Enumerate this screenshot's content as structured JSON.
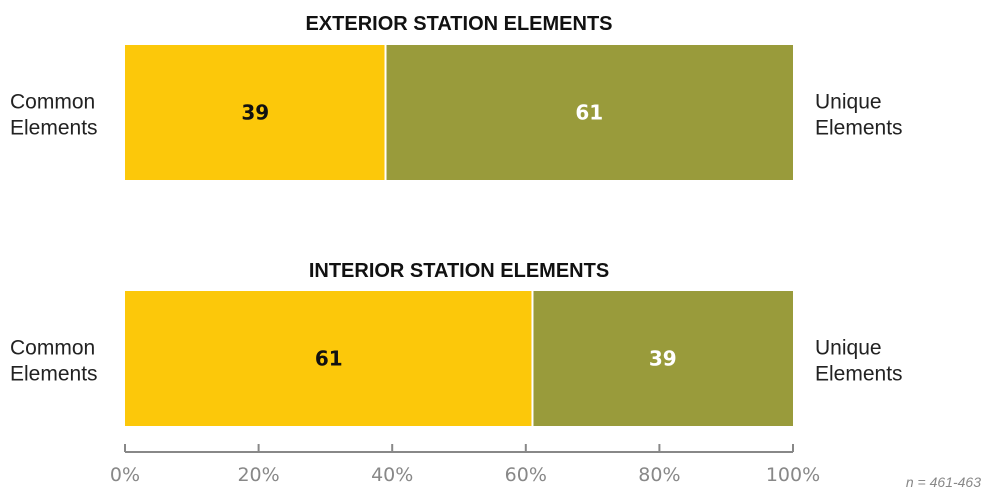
{
  "chart_data": {
    "type": "bar",
    "orientation": "horizontal",
    "stacked": true,
    "panels": [
      {
        "title": "EXTERIOR STATION ELEMENTS",
        "left_label": "Common Elements",
        "right_label": "Unique Elements",
        "segments": [
          {
            "name": "Common Elements",
            "value": 39,
            "label": "39",
            "color": "#FCC80A",
            "label_color": "#111111"
          },
          {
            "name": "Unique Elements",
            "value": 61,
            "label": "61",
            "color": "#999B3B",
            "label_color": "#ffffff"
          }
        ]
      },
      {
        "title": "INTERIOR STATION ELEMENTS",
        "left_label": "Common Elements",
        "right_label": "Unique Elements",
        "segments": [
          {
            "name": "Common Elements",
            "value": 61,
            "label": "61",
            "color": "#FCC80A",
            "label_color": "#111111"
          },
          {
            "name": "Unique Elements",
            "value": 39,
            "label": "39",
            "color": "#999B3B",
            "label_color": "#ffffff"
          }
        ]
      }
    ],
    "xlim": [
      0,
      100
    ],
    "x_ticks": [
      0,
      20,
      40,
      60,
      80,
      100
    ],
    "x_tick_labels": [
      "0%",
      "20%",
      "40%",
      "60%",
      "80%",
      "100%"
    ],
    "note": "n = 461-463",
    "grid": false,
    "legend": "none",
    "axis_color": "#888888"
  }
}
